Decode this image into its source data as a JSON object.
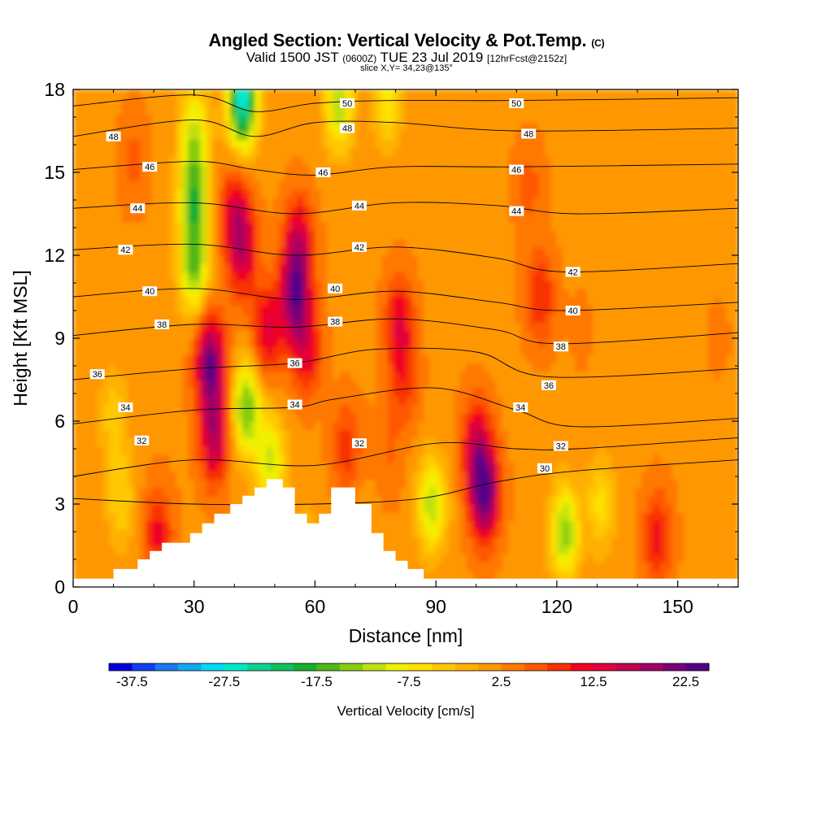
{
  "header": {
    "title_main": "Angled Section: Vertical Velocity & Pot.Temp.",
    "title_units": "(C)",
    "valid_prefix": "Valid 1500 JST",
    "valid_utc": "(0600Z)",
    "valid_date": "TUE 23 Jul 2019",
    "forecast_info": "[12hrFcst@2152z]",
    "slice_info": "slice X,Y= 34,23@135°"
  },
  "chart_data": {
    "type": "heatmap",
    "title": "Angled Section: Vertical Velocity & Pot.Temp.",
    "xlabel": "Distance [nm]",
    "ylabel": "Height [Kft MSL]",
    "xlim": [
      0,
      165
    ],
    "ylim": [
      0,
      18
    ],
    "x_ticks": [
      "0",
      "30",
      "60",
      "90",
      "120",
      "150"
    ],
    "y_ticks": [
      "0",
      "3",
      "6",
      "9",
      "12",
      "15",
      "18"
    ],
    "colorbar": {
      "label": "Vertical Velocity [cm/s]",
      "tick_labels": [
        "-37.5",
        "-27.5",
        "-17.5",
        "-7.5",
        "2.5",
        "12.5",
        "22.5"
      ],
      "min": -40,
      "max": 25,
      "step": 2.5,
      "colors": [
        "#0000d8",
        "#1040f0",
        "#1a78f0",
        "#10a8f0",
        "#00d8f8",
        "#00e8c8",
        "#10d090",
        "#10c060",
        "#18b030",
        "#50b818",
        "#88cc10",
        "#c0e010",
        "#f0f000",
        "#ffe000",
        "#ffc800",
        "#ffb000",
        "#ff9800",
        "#ff7800",
        "#ff5800",
        "#f83000",
        "#f00020",
        "#e00040",
        "#c00050",
        "#a00068",
        "#7a0078",
        "#550088"
      ]
    },
    "background_velocity_cm_s": 2.0,
    "velocity_cells": [
      {
        "x": 30,
        "y": 14,
        "v": -16
      },
      {
        "x": 30,
        "y": 11.5,
        "v": -14
      },
      {
        "x": 30,
        "y": 16.5,
        "v": -10
      },
      {
        "x": 42,
        "y": 17.6,
        "v": -27
      },
      {
        "x": 66,
        "y": 17.5,
        "v": -12
      },
      {
        "x": 78,
        "y": 17.8,
        "v": -8
      },
      {
        "x": 34,
        "y": 8.2,
        "v": 22
      },
      {
        "x": 35,
        "y": 5.5,
        "v": 17
      },
      {
        "x": 42,
        "y": 12.2,
        "v": 14
      },
      {
        "x": 40,
        "y": 13.6,
        "v": 12
      },
      {
        "x": 48,
        "y": 9.3,
        "v": 13
      },
      {
        "x": 55,
        "y": 10.5,
        "v": 20
      },
      {
        "x": 56,
        "y": 12.5,
        "v": 14
      },
      {
        "x": 58,
        "y": 8.6,
        "v": 12
      },
      {
        "x": 43,
        "y": 6.5,
        "v": -15
      },
      {
        "x": 49,
        "y": 4.6,
        "v": -11
      },
      {
        "x": 81,
        "y": 9.6,
        "v": 12
      },
      {
        "x": 82,
        "y": 7.4,
        "v": 8
      },
      {
        "x": 102,
        "y": 3.4,
        "v": 24
      },
      {
        "x": 100,
        "y": 5.2,
        "v": 13
      },
      {
        "x": 89,
        "y": 3.0,
        "v": -12
      },
      {
        "x": 116,
        "y": 10.5,
        "v": 10
      },
      {
        "x": 113,
        "y": 14.5,
        "v": 6
      },
      {
        "x": 122,
        "y": 2.0,
        "v": -14
      },
      {
        "x": 131,
        "y": 3.0,
        "v": -6
      },
      {
        "x": 145,
        "y": 1.8,
        "v": 11
      },
      {
        "x": 21,
        "y": 2.0,
        "v": 11
      },
      {
        "x": 68,
        "y": 5.0,
        "v": 9
      },
      {
        "x": 78,
        "y": 4.8,
        "v": 5
      },
      {
        "x": 126,
        "y": 9.3,
        "v": 3
      },
      {
        "x": 10,
        "y": 6.2,
        "v": -4
      },
      {
        "x": 12,
        "y": 3.2,
        "v": -5
      },
      {
        "x": 140,
        "y": 16.0,
        "v": 2
      },
      {
        "x": 58,
        "y": 1.5,
        "v": -2
      },
      {
        "x": 72,
        "y": 2.0,
        "v": 0
      },
      {
        "x": 160,
        "y": 9.0,
        "v": 3
      },
      {
        "x": 15,
        "y": 15.5,
        "v": 6
      }
    ],
    "terrain": [
      [
        0,
        0.3
      ],
      [
        10,
        0.3
      ],
      [
        10,
        0.65
      ],
      [
        16,
        0.65
      ],
      [
        16,
        1.0
      ],
      [
        19,
        1.0
      ],
      [
        19,
        1.3
      ],
      [
        22,
        1.3
      ],
      [
        22,
        1.6
      ],
      [
        29,
        1.6
      ],
      [
        29,
        1.95
      ],
      [
        32,
        1.95
      ],
      [
        32,
        2.3
      ],
      [
        35,
        2.3
      ],
      [
        35,
        2.65
      ],
      [
        39,
        2.65
      ],
      [
        39,
        3.0
      ],
      [
        42,
        3.0
      ],
      [
        42,
        3.3
      ],
      [
        45,
        3.3
      ],
      [
        45,
        3.6
      ],
      [
        48,
        3.6
      ],
      [
        48,
        3.9
      ],
      [
        52,
        3.9
      ],
      [
        52,
        3.6
      ],
      [
        55,
        3.6
      ],
      [
        55,
        2.65
      ],
      [
        58,
        2.65
      ],
      [
        58,
        2.3
      ],
      [
        61,
        2.3
      ],
      [
        61,
        2.65
      ],
      [
        64,
        2.65
      ],
      [
        64,
        3.6
      ],
      [
        70,
        3.6
      ],
      [
        70,
        3.0
      ],
      [
        74,
        3.0
      ],
      [
        74,
        1.95
      ],
      [
        77,
        1.95
      ],
      [
        77,
        1.3
      ],
      [
        80,
        1.3
      ],
      [
        80,
        0.95
      ],
      [
        83,
        0.95
      ],
      [
        83,
        0.65
      ],
      [
        87,
        0.65
      ],
      [
        87,
        0.3
      ],
      [
        165,
        0.3
      ]
    ],
    "isotherms": [
      {
        "label": "30",
        "pts": [
          [
            0,
            3.2
          ],
          [
            30,
            3.0
          ],
          [
            60,
            3.0
          ],
          [
            86,
            3.2
          ],
          [
            105,
            3.8
          ],
          [
            125,
            4.2
          ],
          [
            165,
            4.6
          ]
        ]
      },
      {
        "label": "32",
        "pts": [
          [
            0,
            4.0
          ],
          [
            30,
            4.6
          ],
          [
            60,
            4.4
          ],
          [
            90,
            5.2
          ],
          [
            110,
            5.0
          ],
          [
            125,
            5.0
          ],
          [
            165,
            5.4
          ]
        ]
      },
      {
        "label": "34",
        "pts": [
          [
            0,
            5.9
          ],
          [
            30,
            6.4
          ],
          [
            55,
            6.5
          ],
          [
            65,
            6.8
          ],
          [
            90,
            7.2
          ],
          [
            110,
            6.4
          ],
          [
            125,
            5.8
          ],
          [
            165,
            6.1
          ]
        ]
      },
      {
        "label": "36",
        "pts": [
          [
            0,
            7.5
          ],
          [
            30,
            7.9
          ],
          [
            55,
            8.1
          ],
          [
            75,
            8.6
          ],
          [
            100,
            8.5
          ],
          [
            118,
            7.6
          ],
          [
            165,
            7.9
          ]
        ]
      },
      {
        "label": "38",
        "pts": [
          [
            0,
            9.1
          ],
          [
            30,
            9.5
          ],
          [
            55,
            9.4
          ],
          [
            80,
            9.7
          ],
          [
            105,
            9.3
          ],
          [
            120,
            8.8
          ],
          [
            165,
            9.2
          ]
        ]
      },
      {
        "label": "40",
        "pts": [
          [
            0,
            10.5
          ],
          [
            30,
            10.8
          ],
          [
            55,
            10.4
          ],
          [
            80,
            10.7
          ],
          [
            105,
            10.3
          ],
          [
            122,
            10.0
          ],
          [
            165,
            10.3
          ]
        ]
      },
      {
        "label": "42",
        "pts": [
          [
            0,
            12.2
          ],
          [
            30,
            12.4
          ],
          [
            55,
            12.0
          ],
          [
            80,
            12.3
          ],
          [
            105,
            11.9
          ],
          [
            122,
            11.4
          ],
          [
            165,
            11.7
          ]
        ]
      },
      {
        "label": "44",
        "pts": [
          [
            0,
            13.7
          ],
          [
            30,
            13.9
          ],
          [
            55,
            13.5
          ],
          [
            80,
            13.9
          ],
          [
            105,
            13.8
          ],
          [
            125,
            13.5
          ],
          [
            165,
            13.7
          ]
        ]
      },
      {
        "label": "46",
        "pts": [
          [
            0,
            15.1
          ],
          [
            30,
            15.4
          ],
          [
            45,
            15.1
          ],
          [
            60,
            14.9
          ],
          [
            80,
            15.2
          ],
          [
            110,
            15.2
          ],
          [
            165,
            15.3
          ]
        ]
      },
      {
        "label": "48",
        "pts": [
          [
            0,
            16.3
          ],
          [
            30,
            16.9
          ],
          [
            45,
            16.3
          ],
          [
            60,
            16.8
          ],
          [
            80,
            16.8
          ],
          [
            110,
            16.5
          ],
          [
            165,
            16.6
          ]
        ]
      },
      {
        "label": "50",
        "pts": [
          [
            0,
            17.4
          ],
          [
            30,
            17.8
          ],
          [
            45,
            17.2
          ],
          [
            60,
            17.5
          ],
          [
            80,
            17.6
          ],
          [
            110,
            17.6
          ],
          [
            165,
            17.7
          ]
        ]
      }
    ],
    "isotherm_label_positions": [
      {
        "label": "48",
        "x": 10,
        "y": 16.3
      },
      {
        "label": "46",
        "x": 19,
        "y": 15.2
      },
      {
        "label": "44",
        "x": 16,
        "y": 13.7
      },
      {
        "label": "42",
        "x": 13,
        "y": 12.2
      },
      {
        "label": "40",
        "x": 19,
        "y": 10.7
      },
      {
        "label": "38",
        "x": 22,
        "y": 9.5
      },
      {
        "label": "36",
        "x": 6,
        "y": 7.7
      },
      {
        "label": "34",
        "x": 13,
        "y": 6.5
      },
      {
        "label": "32",
        "x": 17,
        "y": 5.3
      },
      {
        "label": "50",
        "x": 68,
        "y": 17.5
      },
      {
        "label": "48",
        "x": 68,
        "y": 16.6
      },
      {
        "label": "46",
        "x": 62,
        "y": 15.0
      },
      {
        "label": "44",
        "x": 71,
        "y": 13.8
      },
      {
        "label": "42",
        "x": 71,
        "y": 12.3
      },
      {
        "label": "40",
        "x": 65,
        "y": 10.8
      },
      {
        "label": "38",
        "x": 65,
        "y": 9.6
      },
      {
        "label": "36",
        "x": 55,
        "y": 8.1
      },
      {
        "label": "34",
        "x": 55,
        "y": 6.6
      },
      {
        "label": "32",
        "x": 71,
        "y": 5.2
      },
      {
        "label": "50",
        "x": 110,
        "y": 17.5
      },
      {
        "label": "48",
        "x": 113,
        "y": 16.4
      },
      {
        "label": "46",
        "x": 110,
        "y": 15.1
      },
      {
        "label": "44",
        "x": 110,
        "y": 13.6
      },
      {
        "label": "42",
        "x": 124,
        "y": 11.4
      },
      {
        "label": "40",
        "x": 124,
        "y": 10.0
      },
      {
        "label": "38",
        "x": 121,
        "y": 8.7
      },
      {
        "label": "36",
        "x": 118,
        "y": 7.3
      },
      {
        "label": "34",
        "x": 111,
        "y": 6.5
      },
      {
        "label": "32",
        "x": 121,
        "y": 5.1
      },
      {
        "label": "30",
        "x": 117,
        "y": 4.3
      }
    ]
  }
}
